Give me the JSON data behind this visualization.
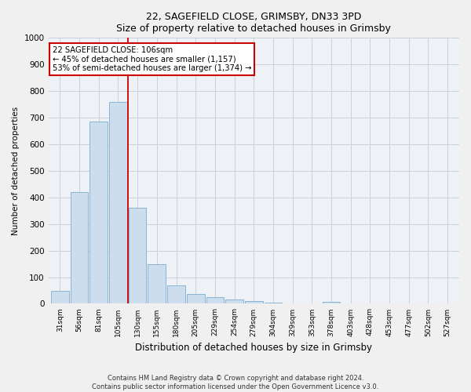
{
  "title1": "22, SAGEFIELD CLOSE, GRIMSBY, DN33 3PD",
  "title2": "Size of property relative to detached houses in Grimsby",
  "xlabel": "Distribution of detached houses by size in Grimsby",
  "ylabel": "Number of detached properties",
  "categories": [
    "31sqm",
    "56sqm",
    "81sqm",
    "105sqm",
    "130sqm",
    "155sqm",
    "180sqm",
    "205sqm",
    "229sqm",
    "254sqm",
    "279sqm",
    "304sqm",
    "329sqm",
    "353sqm",
    "378sqm",
    "403sqm",
    "428sqm",
    "453sqm",
    "477sqm",
    "502sqm",
    "527sqm"
  ],
  "values": [
    48,
    420,
    685,
    760,
    360,
    150,
    70,
    37,
    25,
    15,
    10,
    5,
    2,
    0,
    8,
    0,
    0,
    0,
    0,
    0,
    0
  ],
  "bar_color": "#ccdded",
  "bar_edge_color": "#8ab4d4",
  "annotation_text": "22 SAGEFIELD CLOSE: 106sqm\n← 45% of detached houses are smaller (1,157)\n53% of semi-detached houses are larger (1,374) →",
  "annotation_box_color": "#ffffff",
  "annotation_border_color": "#cc0000",
  "vline_color": "#cc0000",
  "vline_x": 3.5,
  "ylim": [
    0,
    1000
  ],
  "yticks": [
    0,
    100,
    200,
    300,
    400,
    500,
    600,
    700,
    800,
    900,
    1000
  ],
  "grid_color": "#c8d0dc",
  "bg_color": "#eef2f7",
  "footnote": "Contains HM Land Registry data © Crown copyright and database right 2024.\nContains public sector information licensed under the Open Government Licence v3.0."
}
